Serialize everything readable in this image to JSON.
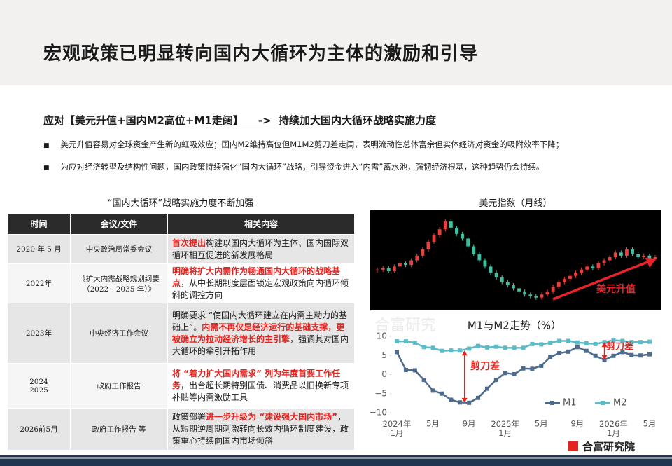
{
  "header": {
    "title": "宏观政策已明显转向国内大循环为主体的激励和引导"
  },
  "subtitle": "应对【美元升值+国内M2高位+M1走阔】    ->  持续加大国内大循环战略实施力度",
  "bullets": [
    "美元升值容易对全球资金产生新的虹吸效应；国内M2维持高位但M1M2剪刀差走阔，表明流动性总体富余但实体经济对资金的吸附效率下降；",
    "为应对经济转型及结构性问题，国内政策持续强化“国内大循环”战略，引导资金进入“内需”蓄水池，强韧经济根基，这种趋势仍会持续。"
  ],
  "table": {
    "caption": "“国内大循环”战略实施力度不断加强",
    "columns": [
      "时间",
      "会议/文件",
      "相关内容"
    ],
    "rows": [
      {
        "time": "2020 年 5 月",
        "document": "中央政治局常委会议",
        "content": [
          {
            "text": "首次提出",
            "emphasis": true
          },
          {
            "text": "构建以国内大循环为主体、国内国际双循环相互促进的新发展格局",
            "emphasis": false
          }
        ]
      },
      {
        "time": "2022年",
        "document": "《扩大内需战略规划纲要（2022－2035 年）》",
        "content": [
          {
            "text": "明确将扩大内需作为畅通国内大循环的战略基点",
            "emphasis": true
          },
          {
            "text": "，从中长期制度层面锁定宏观政策向内循环倾斜的调控方向",
            "emphasis": false
          }
        ]
      },
      {
        "time": "2023年",
        "document": "中央经济工作会议",
        "content": [
          {
            "text": "明确要求 “使国内大循环建立在内需主动力的基础上”。",
            "emphasis": false
          },
          {
            "text": "内需不再仅是经济运行的基础支撑，更被确立为拉动经济增长的主引擎",
            "emphasis": true
          },
          {
            "text": "，强调其对国内大循环的牵引开拓作用",
            "emphasis": false
          }
        ]
      },
      {
        "time": "2024\n2025",
        "document": "政府工作报告",
        "content": [
          {
            "text": "将 “着力扩大国内需求” 列为年度首要工作任务",
            "emphasis": true
          },
          {
            "text": "，出台超长期特别国债、消费品以旧换新专项补贴等内需激励工具",
            "emphasis": false
          }
        ]
      },
      {
        "time": "2026前5月",
        "document": "政府工作报告 等",
        "content": [
          {
            "text": "政策部署",
            "emphasis": false
          },
          {
            "text": "进一步升级为 “建设强大国内市场”",
            "emphasis": true
          },
          {
            "text": "，从短期逆周期刺激转向长效内循环制度建设，政策重心持续向国内市场倾斜",
            "emphasis": false
          }
        ]
      }
    ]
  },
  "watermark": "合富研究",
  "logo": "合富研究院",
  "chart_data": [
    {
      "type": "candlestick",
      "title": "美元指数（月线）",
      "annotation": "美元升值",
      "values": [
        90,
        91,
        89,
        92,
        94,
        93,
        96,
        99,
        103,
        108,
        112,
        116,
        121,
        117,
        113,
        110,
        105,
        100,
        96,
        92,
        88,
        85,
        82,
        80,
        78,
        76,
        74,
        73,
        72,
        74,
        76,
        79,
        82,
        84,
        86,
        88,
        90,
        92,
        91,
        94,
        96,
        98,
        101,
        99,
        103,
        100,
        98,
        99,
        97,
        98
      ],
      "ylim": [
        66,
        126
      ],
      "up_color": "#e8413b",
      "down_color": "#3fbf9f",
      "background": "#000000"
    },
    {
      "type": "line",
      "title": "M1与M2走势（%）",
      "categories": [
        "2024年\n1月",
        null,
        null,
        null,
        "5月",
        null,
        null,
        null,
        "9月",
        null,
        null,
        null,
        "2025年\n1月",
        null,
        null,
        null,
        "5月",
        null,
        null,
        null,
        "9月",
        null,
        null,
        null,
        "2026年\n1月",
        null,
        null,
        null,
        "5月"
      ],
      "series": [
        {
          "name": "M1",
          "color": "#4d6b8c",
          "values": [
            5.9,
            1.2,
            1.1,
            -1.4,
            -4.2,
            -5,
            -6.6,
            -7.3,
            -7.4,
            -6.1,
            -3.7,
            -1.4,
            0.4,
            0.1,
            1.6,
            1.5,
            2.3,
            4.6,
            5.6,
            6,
            7.2,
            6.2,
            4.9,
            3.8,
            4.9,
            5.9,
            5.1,
            5,
            5.3
          ]
        },
        {
          "name": "M2",
          "color": "#5bbcc7",
          "values": [
            8.7,
            8.7,
            8.3,
            7.2,
            7,
            6.2,
            6.3,
            6.3,
            6.8,
            7.5,
            7.1,
            7.3,
            7,
            7,
            7,
            8,
            7.9,
            8.3,
            8.8,
            8.8,
            8.4,
            8.2,
            8,
            8.5,
            9,
            8.8,
            8.5,
            8.5,
            8.6
          ]
        }
      ],
      "ylim": [
        -10,
        10
      ],
      "yticks": [
        {
          "value": -10,
          "label": "−10"
        },
        {
          "value": -5,
          "label": "−5"
        },
        0,
        5,
        10
      ],
      "annotations": [
        "剪刀差",
        "剪刀差"
      ],
      "annotation_color": "#e52420"
    }
  ]
}
